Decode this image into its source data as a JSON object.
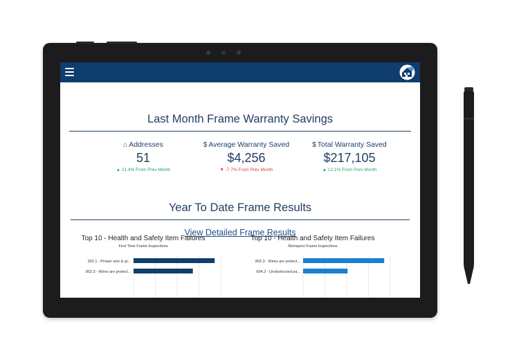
{
  "header": {
    "menu_icon": "hamburger-menu-icon",
    "logo_icon": "house-frame-logo-icon",
    "brand_color": "#0f3d6e"
  },
  "savings": {
    "title": "Last Month Frame Warranty Savings",
    "kpis": [
      {
        "icon": "house-icon",
        "label": "Addresses",
        "value": "51",
        "delta": "21.4% From Prev Month",
        "trend": "up"
      },
      {
        "icon": "dollar-icon",
        "label": "Average Warranty Saved",
        "value": "$4,256",
        "delta": "-7.7% From Prev Month",
        "trend": "down"
      },
      {
        "icon": "dollar-icon",
        "label": "Total Warranty Saved",
        "value": "$217,105",
        "delta": "12.1% From Prev Month",
        "trend": "up"
      }
    ]
  },
  "ytd": {
    "title": "Year To Date Frame Results",
    "link_label": "View Detailed Frame Results"
  },
  "chart_data": [
    {
      "type": "bar",
      "orientation": "horizontal",
      "title": "Top 10 - Health and Safety Item Failures",
      "subtitle": "First Time Frame Inspections",
      "categories": [
        "302.1 - Proper size & gr...",
        "802.3 - Wires are protect..."
      ],
      "values": [
        0.93,
        0.68
      ],
      "xlim": [
        0,
        1
      ],
      "grid": true,
      "color": "#0f3d6e"
    },
    {
      "type": "bar",
      "orientation": "horizontal",
      "title": "Top 10 - Health and Safety Item Failures",
      "subtitle": "Reinspect Frame Inspections",
      "categories": [
        "802.3 - Wires are protect...",
        "604.2 - Unobstructed pa..."
      ],
      "values": [
        0.93,
        0.51
      ],
      "xlim": [
        0,
        1
      ],
      "grid": true,
      "color": "#1a7fd0"
    }
  ]
}
